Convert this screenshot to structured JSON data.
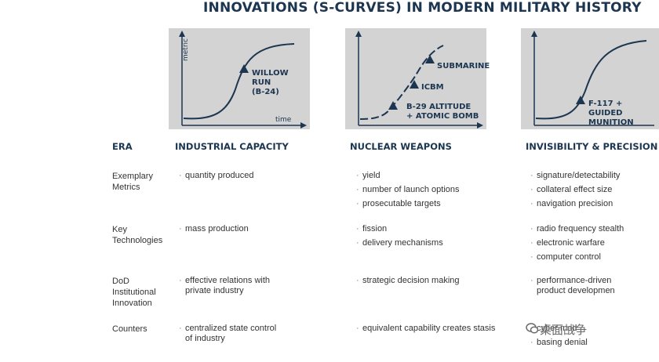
{
  "title": "INNOVATIONS (S-CURVES) IN MODERN MILITARY HISTORY",
  "panels": [
    {
      "axis_y": "metric",
      "axis_x": "time",
      "points": [
        {
          "label": "WILLOW RUN\n(B-24)"
        }
      ]
    },
    {
      "points": [
        {
          "label": "B-29 ALTITUDE\n+ ATOMIC BOMB"
        },
        {
          "label": "ICBM"
        },
        {
          "label": "SUBMARINE"
        }
      ]
    },
    {
      "points": [
        {
          "label": "F-117 +\nGUIDED MUNITION"
        }
      ]
    }
  ],
  "eras": {
    "header": "ERA",
    "columns": [
      "INDUSTRIAL CAPACITY",
      "NUCLEAR WEAPONS",
      "INVISIBILITY & PRECISION"
    ]
  },
  "rows": [
    {
      "label": "Exemplary\nMetrics",
      "cells": [
        [
          "quantity produced"
        ],
        [
          "yield",
          "number of launch options",
          "prosecutable targets"
        ],
        [
          "signature/detectability",
          "collateral effect size",
          "navigation precision"
        ]
      ]
    },
    {
      "label": "Key\nTechnologies",
      "cells": [
        [
          "mass production"
        ],
        [
          "fission",
          "delivery mechanisms"
        ],
        [
          "radio frequency stealth",
          "electronic warfare",
          "computer control"
        ]
      ]
    },
    {
      "label": "DoD\nInstitutional\nInnovation",
      "cells": [
        [
          "effective relations with\nprivate industry"
        ],
        [
          "strategic decision making"
        ],
        [
          "performance-driven\nproduct developmen"
        ]
      ]
    },
    {
      "label": "Counters",
      "cells": [
        [
          "centralized state control\nof industry"
        ],
        [
          "equivalent capability creates stasis"
        ],
        [
          "cyber mod",
          "basing denial"
        ]
      ]
    }
  ],
  "watermark": "桌面战争",
  "colors": {
    "accent": "#1c3550",
    "panel_bg": "#d3d3d3",
    "curve": "#1c3550"
  }
}
